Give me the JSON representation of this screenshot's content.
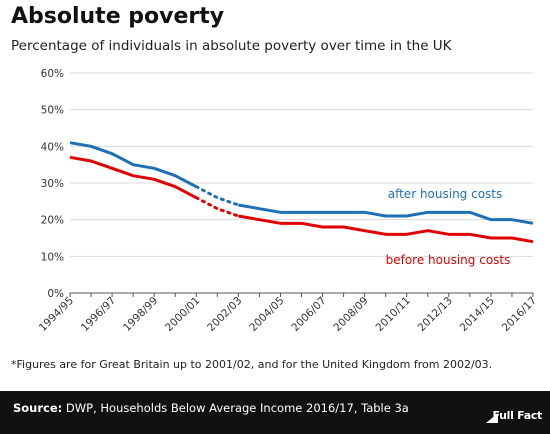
{
  "header": {
    "title": "Absolute poverty",
    "subtitle": "Percentage of individuals in absolute poverty over time in the UK"
  },
  "chart_data": {
    "type": "line",
    "title": "Absolute poverty",
    "subtitle": "Percentage of individuals in absolute poverty over time in the UK",
    "xlabel": "",
    "ylabel": "",
    "ylim": [
      0,
      60
    ],
    "yticks": [
      "0%",
      "10%",
      "20%",
      "30%",
      "40%",
      "50%",
      "60%"
    ],
    "ytick_values": [
      0,
      10,
      20,
      30,
      40,
      50,
      60
    ],
    "grid": true,
    "x": [
      "1994/95",
      "1995/96",
      "1996/97",
      "1997/98",
      "1998/99",
      "1999/00",
      "2000/01",
      "2001/02",
      "2002/03",
      "2003/04",
      "2004/05",
      "2005/06",
      "2006/07",
      "2007/08",
      "2008/09",
      "2009/10",
      "2010/11",
      "2011/12",
      "2012/13",
      "2013/14",
      "2014/15",
      "2015/16",
      "2016/17"
    ],
    "x_tick_labels": [
      "1994/95",
      "1996/97",
      "1998/99",
      "2000/01",
      "2002/03",
      "2004/05",
      "2006/07",
      "2008/09",
      "2010/11",
      "2012/13",
      "2014/15",
      "2016/17"
    ],
    "series": [
      {
        "name": "after housing costs",
        "color": "#1f6fb5",
        "values": [
          41,
          40,
          38,
          35,
          34,
          32,
          29,
          26,
          24,
          23,
          22,
          22,
          22,
          22,
          22,
          21,
          21,
          22,
          22,
          22,
          20,
          20,
          19
        ]
      },
      {
        "name": "before housing costs",
        "color": "#e00000",
        "values": [
          37,
          36,
          34,
          32,
          31,
          29,
          26,
          23,
          21,
          20,
          19,
          19,
          18,
          18,
          17,
          16,
          16,
          17,
          16,
          16,
          15,
          15,
          14
        ]
      }
    ],
    "dotted_segment": {
      "from": "2000/01",
      "to": "2002/03"
    },
    "legend": "inline-right"
  },
  "footnote": "*Figures are for Great Britain up to 2001/02, and for the United Kingdom from 2002/03.",
  "source": {
    "label": "Source:",
    "text": " DWP, Households Below Average Income 2016/17, Table 3a"
  },
  "logo": {
    "text": "Full Fact"
  },
  "colors": {
    "footer_bg": "#111111",
    "blue": "#1f6fb5",
    "red": "#e00000"
  }
}
